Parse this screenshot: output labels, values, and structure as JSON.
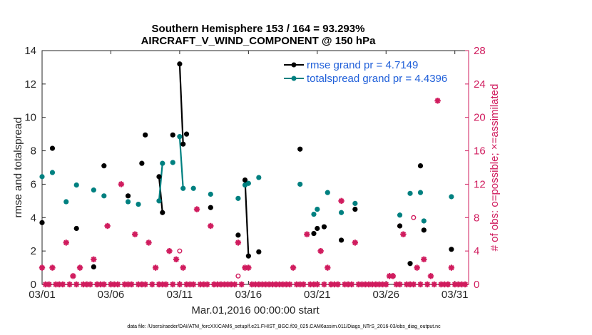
{
  "chart_data": {
    "type": "line",
    "title": "Southern Hemisphere 153 / 164 = 93.293%",
    "subtitle": "AIRCRAFT_V_WIND_COMPONENT @ 150 hPa",
    "xlabel": "Mar.01,2016 00:00:00 start",
    "ylabel": "rmse and totalspread",
    "y2label": "# of obs: o=possible; ×=assimilated",
    "footnote": "data file: /Users/raeder/DAI/ATM_forcXX/CAM6_setup/f.e21.FHIST_BGC.f09_025.CAM6assim.011/Diags_NTrS_2016-03/obs_diag_output.nc",
    "xlim": [
      1,
      32
    ],
    "ylim": [
      0,
      14
    ],
    "y2lim": [
      0,
      28
    ],
    "x_ticks": [
      1,
      6,
      11,
      16,
      21,
      26,
      31
    ],
    "x_tick_labels": [
      "03/01",
      "03/06",
      "03/11",
      "03/16",
      "03/21",
      "03/26",
      "03/31"
    ],
    "y_ticks": [
      0,
      2,
      4,
      6,
      8,
      10,
      12,
      14
    ],
    "y_tick_labels": [
      "0",
      "2",
      "4",
      "6",
      "8",
      "10",
      "12",
      "14"
    ],
    "y2_ticks": [
      0,
      4,
      8,
      12,
      16,
      20,
      24,
      28
    ],
    "y2_tick_labels": [
      "0",
      "4",
      "8",
      "12",
      "16",
      "20",
      "24",
      "28"
    ],
    "colors": {
      "rmse": "#000000",
      "spread": "#008080",
      "obs": "#d01c5e",
      "legend_text": "#1f5fd9"
    },
    "series": [
      {
        "name": "rmse grand pr = 4.7149",
        "key": "rmse",
        "x": [
          1.0,
          1.75,
          3.5,
          4.75,
          5.5,
          7.25,
          8.25,
          8.5,
          9.5,
          9.75,
          10.5,
          11.0,
          11.25,
          11.5,
          12.0,
          13.25,
          15.25,
          15.75,
          16.0,
          16.75,
          19.75,
          20.75,
          21.0,
          21.5,
          22.75,
          23.75,
          27.0,
          27.75,
          28.5,
          28.75,
          30.75
        ],
        "y": [
          3.7,
          8.15,
          3.35,
          1.05,
          7.1,
          5.3,
          7.25,
          8.95,
          6.45,
          4.3,
          8.95,
          13.2,
          8.4,
          9.0,
          null,
          4.6,
          2.95,
          6.25,
          1.7,
          1.95,
          8.1,
          3.05,
          3.35,
          3.45,
          2.65,
          4.5,
          3.5,
          1.25,
          7.1,
          3.25,
          2.1
        ],
        "connected_segments": [
          [
            9.5,
            9.75
          ],
          [
            11.0,
            11.25
          ],
          [
            15.75,
            16.0
          ]
        ]
      },
      {
        "name": "totalspread grand pr = 4.4396",
        "key": "spread",
        "x": [
          1.0,
          1.75,
          2.75,
          3.5,
          4.75,
          5.5,
          7.25,
          8.0,
          9.5,
          9.75,
          10.5,
          11.0,
          11.25,
          12.0,
          13.25,
          15.25,
          15.75,
          16.0,
          16.75,
          19.75,
          20.75,
          21.0,
          21.75,
          22.75,
          23.75,
          27.0,
          27.75,
          28.5,
          28.75,
          30.75
        ],
        "y": [
          6.45,
          6.7,
          4.95,
          5.95,
          5.65,
          5.3,
          4.95,
          4.8,
          5.0,
          7.25,
          7.3,
          8.85,
          5.75,
          5.75,
          5.4,
          5.15,
          5.95,
          6.05,
          6.4,
          6.0,
          4.2,
          4.5,
          5.5,
          4.3,
          4.85,
          4.15,
          5.45,
          5.5,
          3.8,
          5.25
        ],
        "connected_segments": [
          [
            9.5,
            9.75
          ],
          [
            11.0,
            11.25
          ],
          [
            15.75,
            16.0
          ]
        ]
      }
    ],
    "obs_assimilated": {
      "name": "assimilated",
      "x": [
        1.0,
        1.25,
        1.5,
        1.75,
        2.0,
        2.25,
        2.5,
        2.75,
        3.0,
        3.25,
        3.5,
        3.75,
        4.0,
        4.25,
        4.5,
        4.75,
        5.0,
        5.25,
        5.5,
        5.75,
        6.0,
        6.25,
        6.5,
        6.75,
        7.0,
        7.25,
        7.5,
        7.75,
        8.0,
        8.25,
        8.5,
        8.75,
        9.0,
        9.25,
        9.5,
        9.75,
        10.0,
        10.25,
        10.5,
        10.75,
        11.0,
        11.25,
        11.5,
        11.75,
        12.0,
        12.25,
        12.5,
        12.75,
        13.0,
        13.25,
        13.5,
        13.75,
        14.0,
        14.25,
        14.5,
        14.75,
        15.0,
        15.25,
        15.5,
        15.75,
        16.0,
        16.25,
        16.5,
        16.75,
        17.0,
        17.25,
        17.5,
        17.75,
        18.0,
        18.25,
        18.5,
        18.75,
        19.0,
        19.25,
        19.5,
        19.75,
        20.0,
        20.25,
        20.5,
        20.75,
        21.0,
        21.25,
        21.5,
        21.75,
        22.0,
        22.25,
        22.5,
        22.75,
        23.0,
        23.25,
        23.5,
        23.75,
        24.0,
        24.25,
        24.5,
        24.75,
        25.0,
        25.25,
        25.5,
        25.75,
        26.0,
        26.25,
        26.5,
        26.75,
        27.0,
        27.25,
        27.5,
        27.75,
        28.0,
        28.25,
        28.5,
        28.75,
        29.0,
        29.25,
        29.5,
        29.75,
        30.0,
        30.25,
        30.5,
        30.75,
        31.0,
        31.25,
        31.5,
        31.75
      ],
      "y": [
        2,
        0,
        0,
        2,
        0,
        0,
        0,
        5,
        0,
        1,
        0,
        2,
        0,
        0,
        0,
        3,
        0,
        0,
        0,
        7,
        0,
        0,
        0,
        12,
        0,
        0,
        0,
        6,
        0,
        0,
        0,
        5,
        0,
        2,
        0,
        0,
        0,
        4,
        0,
        3,
        0,
        2,
        0,
        0,
        0,
        9,
        0,
        0,
        0,
        7,
        0,
        0,
        0,
        0,
        0,
        0,
        0,
        5,
        0,
        2,
        2,
        0,
        0,
        0,
        0,
        0,
        0,
        0,
        0,
        0,
        0,
        0,
        0,
        2,
        0,
        0,
        0,
        6,
        0,
        0,
        0,
        4,
        0,
        2,
        0,
        0,
        0,
        10,
        0,
        0,
        0,
        5,
        0,
        0,
        0,
        0,
        0,
        0,
        0,
        0,
        0,
        1,
        1,
        0,
        0,
        6,
        0,
        0,
        0,
        2,
        0,
        3,
        0,
        1,
        0,
        22,
        0,
        0,
        0,
        2,
        0,
        0,
        0,
        0
      ]
    },
    "obs_possible": {
      "name": "possible",
      "x": [
        11.0,
        15.25,
        27.0,
        28.0
      ],
      "y": [
        4,
        1,
        7,
        8
      ]
    },
    "legend_location": "top-right"
  }
}
